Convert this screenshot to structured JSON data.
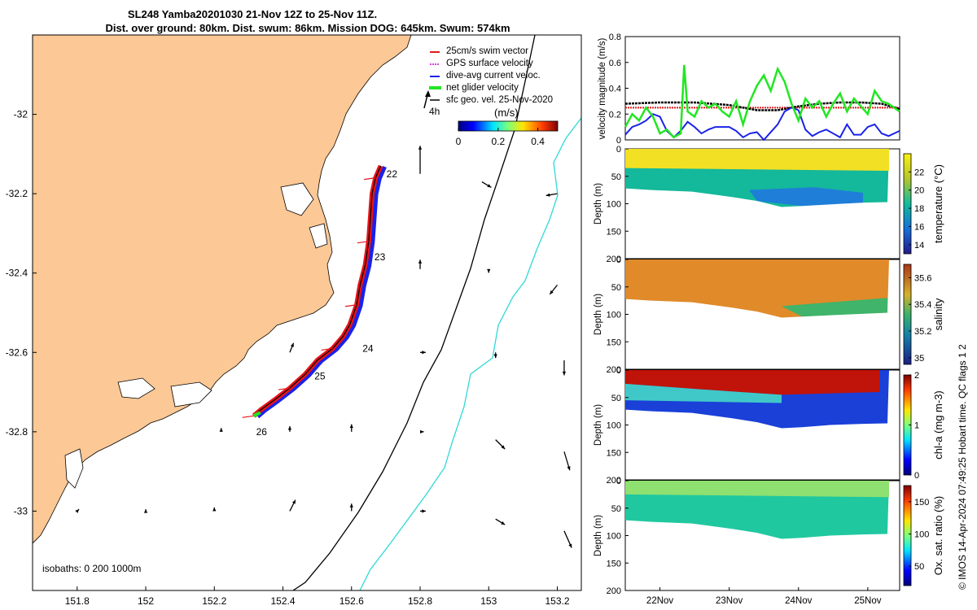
{
  "header": {
    "title_line1": "SL248 Yamba20201030 21-Nov 12Z to 25-Nov 11Z.",
    "title_line2": "Dist. over ground: 80km. Dist. swum: 86km. Mission DOG: 645km. Swum: 574km"
  },
  "colors": {
    "land": "#fbc896",
    "glider_track": "#e8141a",
    "dive_avg_current": "#1a22e8",
    "net_velocity": "#22e622",
    "isobath_200": "#000000",
    "isobath_1000": "#30d8d8",
    "swim_speed_line": "#e01a1a",
    "sfc_geo_vel": "#000000"
  },
  "chart_data": [
    {
      "id": "map",
      "type": "scatter",
      "xticks": [
        "151.8",
        "152",
        "152.2",
        "152.4",
        "152.6",
        "152.8",
        "153",
        "153.2"
      ],
      "yticks": [
        "-32",
        "-32.2",
        "-32.4",
        "-32.6",
        "-32.8",
        "-33"
      ],
      "xlim": [
        151.67,
        153.27
      ],
      "ylim": [
        -33.2,
        -31.8
      ],
      "legend": {
        "items": [
          "25cm/s swim vector",
          "GPS surface velocity",
          "dive-avg current veloc.",
          "net glider velocity",
          "sfc geo. vel. 25-Nov-2020"
        ],
        "time_label": "4h"
      },
      "colorbar": {
        "label": "(m/s)",
        "ticks": [
          "0",
          "0.2",
          "0.4"
        ],
        "range": [
          0,
          0.5
        ]
      },
      "day_labels": [
        {
          "text": "22",
          "lon": 152.69,
          "lat": -32.15
        },
        {
          "text": "23",
          "lon": 152.655,
          "lat": -32.36
        },
        {
          "text": "24",
          "lon": 152.62,
          "lat": -32.59
        },
        {
          "text": "25",
          "lon": 152.48,
          "lat": -32.66
        },
        {
          "text": "26",
          "lon": 152.31,
          "lat": -32.8
        }
      ],
      "track": [
        [
          152.685,
          -32.13
        ],
        [
          152.67,
          -32.16
        ],
        [
          152.66,
          -32.2
        ],
        [
          152.655,
          -32.26
        ],
        [
          152.65,
          -32.32
        ],
        [
          152.64,
          -32.38
        ],
        [
          152.625,
          -32.43
        ],
        [
          152.615,
          -32.48
        ],
        [
          152.595,
          -32.53
        ],
        [
          152.575,
          -32.56
        ],
        [
          152.545,
          -32.59
        ],
        [
          152.5,
          -32.62
        ],
        [
          152.465,
          -32.655
        ],
        [
          152.42,
          -32.69
        ],
        [
          152.375,
          -32.72
        ],
        [
          152.335,
          -32.745
        ],
        [
          152.315,
          -32.76
        ]
      ],
      "isobaths_label": "isobaths: 0   200  1000m",
      "geo_vectors": [
        {
          "lon": 152.8,
          "lat": -32.15,
          "u": 0.0,
          "v": 0.15
        },
        {
          "lon": 152.98,
          "lat": -32.17,
          "u": 0.05,
          "v": -0.03
        },
        {
          "lon": 153.2,
          "lat": -32.2,
          "u": -0.06,
          "v": -0.01
        },
        {
          "lon": 152.8,
          "lat": -32.39,
          "u": 0.0,
          "v": 0.05
        },
        {
          "lon": 153.0,
          "lat": -32.39,
          "u": 0.0,
          "v": -0.02
        },
        {
          "lon": 153.2,
          "lat": -32.43,
          "u": -0.04,
          "v": -0.05
        },
        {
          "lon": 152.42,
          "lat": -32.6,
          "u": 0.02,
          "v": 0.05
        },
        {
          "lon": 152.8,
          "lat": -32.6,
          "u": 0.03,
          "v": 0.0
        },
        {
          "lon": 153.02,
          "lat": -32.6,
          "u": 0.0,
          "v": -0.03
        },
        {
          "lon": 153.22,
          "lat": -32.62,
          "u": 0.0,
          "v": -0.08
        },
        {
          "lon": 152.22,
          "lat": -32.8,
          "u": 0.0,
          "v": 0.02
        },
        {
          "lon": 152.42,
          "lat": -32.8,
          "u": 0.0,
          "v": 0.03
        },
        {
          "lon": 152.6,
          "lat": -32.8,
          "u": 0.0,
          "v": 0.04
        },
        {
          "lon": 152.8,
          "lat": -32.8,
          "u": 0.02,
          "v": 0.0
        },
        {
          "lon": 153.02,
          "lat": -32.82,
          "u": 0.05,
          "v": -0.05
        },
        {
          "lon": 153.22,
          "lat": -32.85,
          "u": 0.03,
          "v": -0.1
        },
        {
          "lon": 151.8,
          "lat": -33.0,
          "u": 0.01,
          "v": 0.01
        },
        {
          "lon": 152.0,
          "lat": -33.0,
          "u": 0.0,
          "v": 0.01
        },
        {
          "lon": 152.2,
          "lat": -33.0,
          "u": 0.0,
          "v": 0.02
        },
        {
          "lon": 152.42,
          "lat": -33.0,
          "u": 0.03,
          "v": 0.06
        },
        {
          "lon": 152.6,
          "lat": -33.0,
          "u": 0.0,
          "v": 0.04
        },
        {
          "lon": 152.8,
          "lat": -33.0,
          "u": 0.03,
          "v": 0.0
        },
        {
          "lon": 153.02,
          "lat": -33.02,
          "u": 0.05,
          "v": -0.03
        },
        {
          "lon": 153.22,
          "lat": -33.05,
          "u": 0.04,
          "v": -0.09
        }
      ]
    },
    {
      "id": "velocity",
      "type": "line",
      "ylabel": "velocity magnitude (m/s)",
      "yticks": [
        "0",
        "0.2",
        "0.4",
        "0.6",
        "0.8"
      ],
      "ylim": [
        0,
        0.8
      ],
      "xlim": [
        21.5,
        25.46
      ],
      "series": [
        {
          "color": "#e01a1a",
          "x": [
            21.5,
            25.46
          ],
          "y": [
            0.25,
            0.25
          ]
        },
        {
          "color": "#000000",
          "x": [
            21.5,
            22.0,
            22.5,
            23.0,
            23.4,
            23.7,
            24.0,
            24.3,
            24.6,
            24.9,
            25.2,
            25.46
          ],
          "y": [
            0.28,
            0.29,
            0.29,
            0.27,
            0.23,
            0.23,
            0.26,
            0.28,
            0.29,
            0.29,
            0.28,
            0.24
          ]
        },
        {
          "color": "#1a22e8",
          "x": [
            21.5,
            21.6,
            21.7,
            21.8,
            21.9,
            22.0,
            22.1,
            22.2,
            22.3,
            22.4,
            22.5,
            22.6,
            22.7,
            22.8,
            23.0,
            23.1,
            23.2,
            23.3,
            23.4,
            23.5,
            23.6,
            23.7,
            23.8,
            23.9,
            24.0,
            24.1,
            24.2,
            24.3,
            24.4,
            24.5,
            24.6,
            24.7,
            24.8,
            24.9,
            25.0,
            25.1,
            25.2,
            25.3,
            25.46
          ],
          "y": [
            0.04,
            0.1,
            0.12,
            0.15,
            0.2,
            0.18,
            0.07,
            0.02,
            0.07,
            0.14,
            0.1,
            0.05,
            0.08,
            0.1,
            0.1,
            0.07,
            0.02,
            0.05,
            0.06,
            0.0,
            0.06,
            0.12,
            0.22,
            0.25,
            0.23,
            0.08,
            0.03,
            0.06,
            0.08,
            0.05,
            0.02,
            0.12,
            0.04,
            0.04,
            0.1,
            0.12,
            0.05,
            0.03,
            0.07
          ]
        },
        {
          "color": "#22e622",
          "x": [
            21.5,
            21.6,
            21.7,
            21.8,
            21.9,
            22.0,
            22.1,
            22.2,
            22.3,
            22.35,
            22.4,
            22.5,
            22.6,
            22.7,
            22.8,
            22.9,
            23.0,
            23.1,
            23.2,
            23.3,
            23.4,
            23.5,
            23.6,
            23.7,
            23.8,
            23.9,
            24.0,
            24.1,
            24.2,
            24.3,
            24.4,
            24.5,
            24.6,
            24.7,
            24.8,
            24.9,
            25.0,
            25.1,
            25.2,
            25.3,
            25.46
          ],
          "y": [
            0.1,
            0.2,
            0.15,
            0.25,
            0.18,
            0.05,
            0.08,
            0.02,
            0.05,
            0.58,
            0.22,
            0.18,
            0.3,
            0.25,
            0.28,
            0.22,
            0.18,
            0.3,
            0.12,
            0.3,
            0.42,
            0.5,
            0.38,
            0.55,
            0.45,
            0.28,
            0.15,
            0.32,
            0.25,
            0.3,
            0.18,
            0.28,
            0.36,
            0.22,
            0.32,
            0.26,
            0.2,
            0.38,
            0.3,
            0.28,
            0.22
          ]
        }
      ]
    },
    {
      "id": "temperature",
      "type": "heatmap",
      "ylabel": "Depth (m)",
      "ylim": [
        0,
        200
      ],
      "yticks": [
        "0",
        "50",
        "100",
        "150",
        "200"
      ],
      "colorbar": {
        "label": "temperature (°C)",
        "ticks": [
          "14",
          "16",
          "18",
          "20",
          "22"
        ],
        "range": [
          13,
          24
        ]
      }
    },
    {
      "id": "salinity",
      "type": "heatmap",
      "ylabel": "Depth (m)",
      "ylim": [
        0,
        200
      ],
      "yticks": [
        "0",
        "50",
        "100",
        "150",
        "200"
      ],
      "colorbar": {
        "label": "salinity",
        "ticks": [
          "35",
          "35.2",
          "35.4",
          "35.6"
        ],
        "range": [
          34.95,
          35.7
        ]
      }
    },
    {
      "id": "chla",
      "type": "heatmap",
      "ylabel": "Depth (m)",
      "ylim": [
        0,
        200
      ],
      "yticks": [
        "0",
        "50",
        "100",
        "150",
        "200"
      ],
      "colorbar": {
        "label": "chl-a (mg m-3)",
        "ticks": [
          "0",
          "1",
          "2"
        ],
        "range": [
          0,
          2
        ]
      }
    },
    {
      "id": "oxygen",
      "type": "heatmap",
      "ylabel": "Depth (m)",
      "ylim": [
        0,
        200
      ],
      "yticks": [
        "0",
        "50",
        "100",
        "150",
        "200"
      ],
      "xticks": [
        "22Nov",
        "23Nov",
        "24Nov",
        "25Nov"
      ],
      "colorbar": {
        "label": "Ox. sat. ratio (%)",
        "ticks": [
          "50",
          "100",
          "150"
        ],
        "range": [
          20,
          175
        ]
      }
    }
  ],
  "footer": {
    "credit": "© IMOS 14-Apr-2024 07:49:25 Hobart time. QC flags 1  2"
  }
}
